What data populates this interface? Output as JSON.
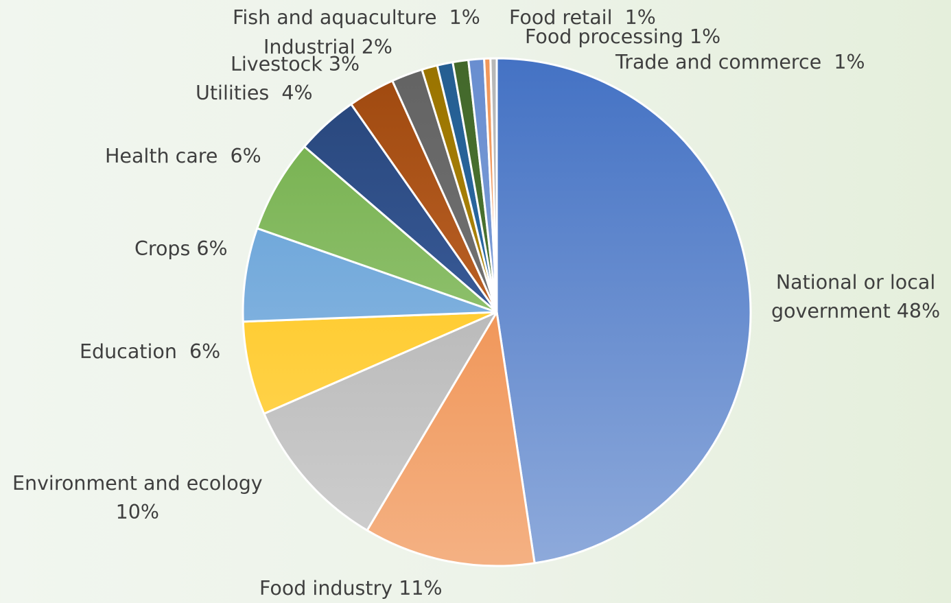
{
  "chart_data": {
    "type": "pie",
    "title": "",
    "slices": [
      {
        "label": "National or local government",
        "value": 48,
        "display": "National or local\ngovernment 48%",
        "color": "#4472c4",
        "light": "#8eaadb"
      },
      {
        "label": "Food industry",
        "value": 11,
        "display": "Food industry 11%",
        "color": "#ed7d31",
        "light": "#f4b183"
      },
      {
        "label": "Environment and ecology",
        "value": 10,
        "display": "Environment and ecology\n10%",
        "color": "#a5a5a5",
        "light": "#d0d0d0"
      },
      {
        "label": "Education",
        "value": 6,
        "display": "Education  6%",
        "color": "#ffc000",
        "light": "#ffd966"
      },
      {
        "label": "Crops",
        "value": 6,
        "display": "Crops 6%",
        "color": "#5b9bd5",
        "light": "#9dc3e6"
      },
      {
        "label": "Health care",
        "value": 6,
        "display": "Health care  6%",
        "color": "#70ad47",
        "light": "#a9d18e"
      },
      {
        "label": "Utilities",
        "value": 4,
        "display": "Utilities  4%",
        "color": "#264478",
        "light": "#4a6fb5"
      },
      {
        "label": "Livestock",
        "value": 3,
        "display": "Livestock 3%",
        "color": "#9e480e",
        "light": "#d4783c"
      },
      {
        "label": "Industrial",
        "value": 2,
        "display": "Industrial 2%",
        "color": "#636363",
        "light": "#7f7f7f"
      },
      {
        "label": "Fish and aquaculture",
        "value": 1,
        "display": "Fish and aquaculture  1%",
        "color": "#997300",
        "light": "#c49a14"
      },
      {
        "label": "Food retail",
        "value": 1,
        "display": "Food retail  1%",
        "color": "#255e91",
        "light": "#2e75b6"
      },
      {
        "label": "Food processing",
        "value": 1,
        "display": "Food processing 1%",
        "color": "#43682b",
        "light": "#548235"
      },
      {
        "label": "Trade and commerce",
        "value": 1,
        "display": "Trade and commerce  1%",
        "color": "#698ed0",
        "light": "#8faadc"
      },
      {
        "label": "",
        "value": 0.4,
        "display": "",
        "color": "#f1975a",
        "light": "#f4b183"
      },
      {
        "label": "",
        "value": 0.4,
        "display": "",
        "color": "#b7b7b7",
        "light": "#c9c9c9"
      }
    ]
  }
}
